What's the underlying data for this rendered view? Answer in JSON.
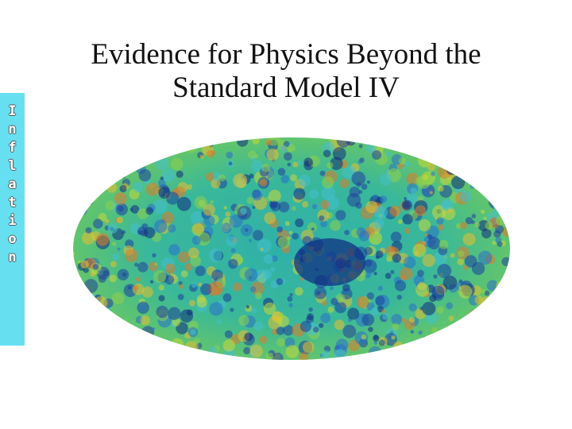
{
  "title": {
    "lines": [
      "Evidence for Physics Beyond the",
      "Standard Model IV"
    ]
  },
  "sidebar": {
    "letters": [
      "I",
      "n",
      "f",
      "l",
      "a",
      "t",
      "i",
      "o",
      "n"
    ]
  }
}
